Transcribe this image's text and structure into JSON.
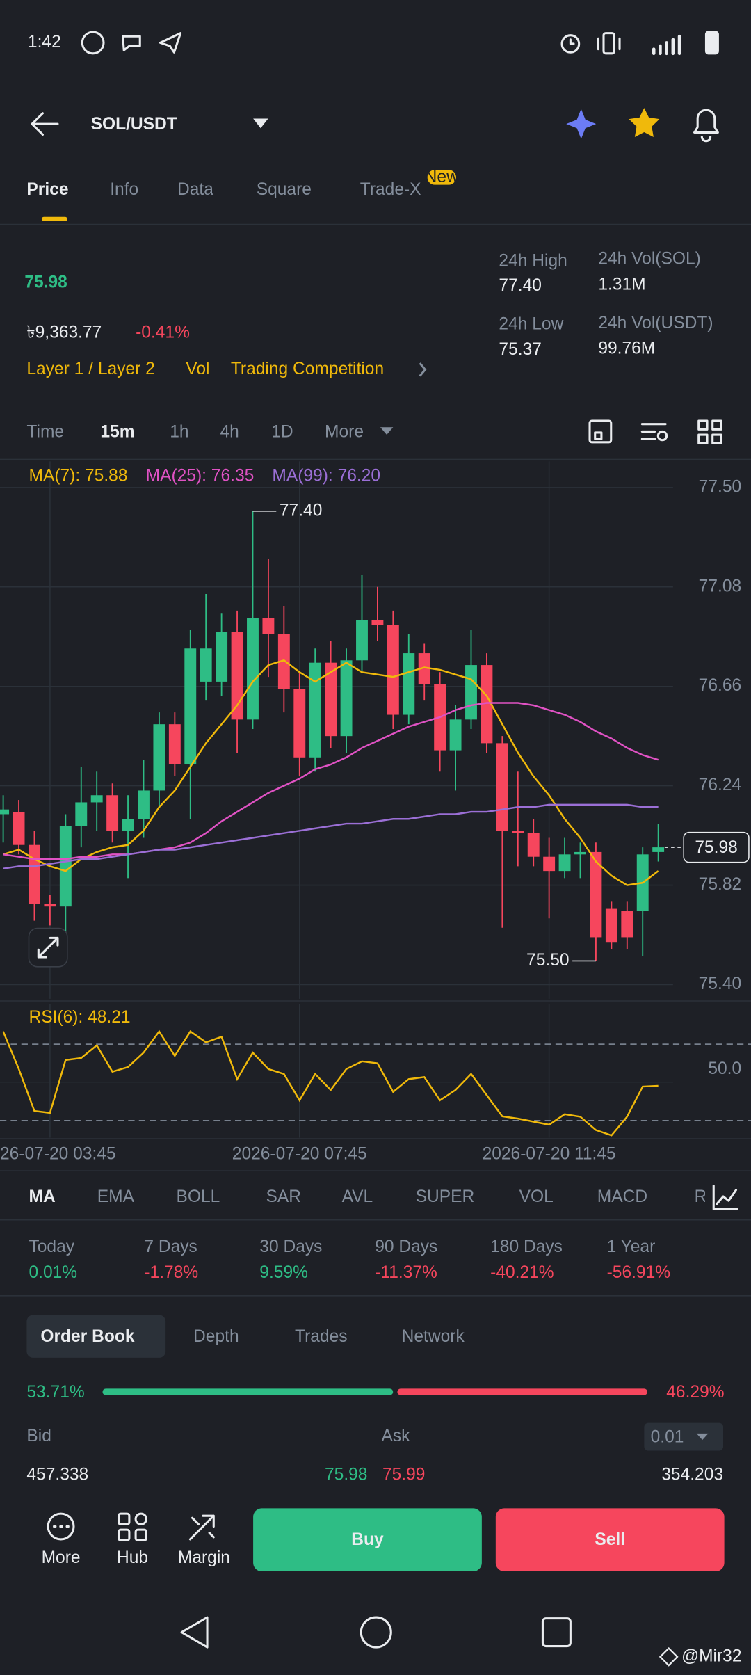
{
  "status_bar": {
    "time": "1:42"
  },
  "header": {
    "pair": "SOL/USDT"
  },
  "tabs": {
    "items": [
      "Price",
      "Info",
      "Data",
      "Square",
      "Trade-X"
    ],
    "badge": "New"
  },
  "ticker": {
    "price": "75.98",
    "fiat": "৳9,363.77",
    "change": "-0.41%",
    "tags": [
      "Layer 1 / Layer 2",
      "Vol",
      "Trading Competition"
    ],
    "stats": [
      {
        "label": "24h High",
        "value": "77.40"
      },
      {
        "label": "24h Vol(SOL)",
        "value": "1.31M"
      },
      {
        "label": "24h Low",
        "value": "75.37"
      },
      {
        "label": "24h Vol(USDT)",
        "value": "99.76M"
      }
    ]
  },
  "intervals": [
    "Time",
    "15m",
    "1h",
    "4h",
    "1D",
    "More"
  ],
  "chart_data": [
    {
      "type": "candlestick",
      "categories": [
        null,
        null,
        null,
        "26-07-20 03:45",
        null,
        null,
        null,
        null,
        null,
        null,
        null,
        null,
        null,
        null,
        null,
        null,
        null,
        null,
        null,
        "2026-07-20 07:45",
        null,
        null,
        null,
        null,
        null,
        null,
        null,
        null,
        null,
        null,
        null,
        null,
        null,
        null,
        null,
        "2026-07-20 11:45",
        null,
        null,
        null,
        null,
        null,
        null,
        null
      ],
      "open": [
        76.12,
        76.13,
        75.99,
        75.74,
        75.73,
        76.07,
        76.17,
        76.2,
        76.05,
        76.1,
        76.22,
        76.5,
        76.33,
        76.68,
        76.68,
        76.89,
        76.52,
        76.95,
        76.88,
        76.65,
        76.36,
        76.76,
        76.45,
        76.77,
        76.94,
        76.92,
        76.54,
        76.8,
        76.67,
        76.39,
        76.52,
        76.75,
        76.42,
        76.05,
        76.04,
        75.94,
        75.88,
        75.95,
        75.96,
        75.72,
        75.71,
        75.71,
        75.96
      ],
      "high": [
        76.2,
        76.18,
        76.05,
        75.78,
        76.12,
        76.32,
        76.3,
        76.25,
        76.2,
        76.35,
        76.55,
        76.55,
        76.9,
        77.05,
        76.97,
        76.98,
        77.4,
        77.2,
        77.0,
        76.72,
        76.82,
        76.85,
        76.82,
        77.13,
        77.08,
        76.98,
        76.88,
        76.84,
        76.72,
        76.58,
        76.9,
        76.8,
        76.45,
        76.3,
        76.1,
        76.02,
        76.02,
        76.0,
        76.0,
        75.75,
        75.75,
        75.98,
        76.08
      ],
      "low": [
        76.0,
        75.95,
        75.67,
        75.65,
        75.62,
        75.98,
        76.05,
        76.0,
        75.85,
        76.02,
        76.15,
        76.28,
        76.1,
        76.6,
        76.62,
        76.38,
        76.48,
        76.7,
        76.55,
        76.28,
        76.3,
        76.4,
        76.38,
        76.72,
        76.85,
        76.48,
        76.5,
        76.6,
        76.3,
        76.22,
        76.48,
        76.38,
        75.64,
        75.9,
        75.9,
        75.68,
        75.85,
        75.85,
        75.5,
        75.55,
        75.55,
        75.52,
        75.92
      ],
      "close": [
        76.14,
        75.99,
        75.74,
        75.73,
        76.07,
        76.17,
        76.2,
        76.05,
        76.1,
        76.22,
        76.5,
        76.33,
        76.82,
        76.82,
        76.89,
        76.52,
        76.95,
        76.88,
        76.65,
        76.36,
        76.76,
        76.45,
        76.77,
        76.94,
        76.92,
        76.54,
        76.8,
        76.67,
        76.39,
        76.52,
        76.75,
        76.42,
        76.05,
        76.04,
        75.94,
        75.88,
        75.95,
        75.96,
        75.6,
        75.58,
        75.6,
        75.95,
        75.98
      ],
      "up_color": "#2ebd85",
      "down_color": "#f6465d",
      "series": [
        {
          "name": "MA(7): 75.88",
          "color": "#f0b90b",
          "values": [
            75.95,
            75.97,
            75.93,
            75.9,
            75.88,
            75.93,
            75.96,
            75.98,
            75.99,
            76.05,
            76.15,
            76.22,
            76.32,
            76.42,
            76.5,
            76.58,
            76.68,
            76.75,
            76.77,
            76.72,
            76.68,
            76.72,
            76.76,
            76.72,
            76.71,
            76.7,
            76.72,
            76.74,
            76.73,
            76.71,
            76.69,
            76.62,
            76.5,
            76.38,
            76.28,
            76.2,
            76.1,
            76.02,
            75.92,
            75.86,
            75.82,
            75.83,
            75.88
          ]
        },
        {
          "name": "MA(25): 76.35",
          "color": "#e052c4",
          "values": [
            75.95,
            75.94,
            75.93,
            75.93,
            75.93,
            75.94,
            75.94,
            75.95,
            75.95,
            75.96,
            75.97,
            75.98,
            76.0,
            76.04,
            76.09,
            76.13,
            76.17,
            76.21,
            76.24,
            76.27,
            76.31,
            76.33,
            76.36,
            76.4,
            76.43,
            76.46,
            76.49,
            76.51,
            76.53,
            76.56,
            76.58,
            76.59,
            76.59,
            76.59,
            76.58,
            76.56,
            76.54,
            76.51,
            76.47,
            76.44,
            76.4,
            76.37,
            76.35
          ]
        },
        {
          "name": "MA(99): 76.20",
          "color": "#9b6fd6",
          "values": [
            75.89,
            75.9,
            75.9,
            75.91,
            75.92,
            75.93,
            75.93,
            75.94,
            75.95,
            75.96,
            75.97,
            75.97,
            75.98,
            75.99,
            76.0,
            76.01,
            76.02,
            76.03,
            76.04,
            76.05,
            76.06,
            76.07,
            76.08,
            76.08,
            76.09,
            76.1,
            76.1,
            76.11,
            76.12,
            76.12,
            76.13,
            76.13,
            76.14,
            76.15,
            76.15,
            76.16,
            76.16,
            76.16,
            76.16,
            76.16,
            76.16,
            76.15,
            76.15
          ]
        }
      ],
      "ylim": [
        75.34,
        77.61
      ],
      "yticks": [
        {
          "value": 77.5,
          "label": "77.50"
        },
        77.08,
        76.66,
        76.24,
        75.82,
        {
          "value": 75.4,
          "label": "75.40"
        }
      ],
      "annotations": [
        {
          "value": 77.4,
          "label": "77.40"
        },
        {
          "value": 75.5,
          "label": "75.50"
        }
      ],
      "current_price": {
        "value": 75.98,
        "label": "75.98"
      },
      "grid": true
    },
    {
      "type": "line",
      "series": [
        {
          "name": "RSI(6): 48.21",
          "color": "#f0b90b",
          "values": [
            76.7,
            57,
            35,
            34,
            61.7,
            62.8,
            69.4,
            55.6,
            58,
            65.6,
            76.7,
            63.9,
            76.7,
            71,
            73.9,
            51.7,
            65.6,
            57,
            54.4,
            40.6,
            54.4,
            46,
            57,
            61,
            60,
            45,
            51.7,
            52.8,
            40.6,
            46,
            54.4,
            43.3,
            32.2,
            31,
            29.4,
            27.8,
            33.3,
            32,
            25,
            22.2,
            32,
            47.8,
            48.21
          ]
        }
      ],
      "ylim": [
        21,
        91
      ],
      "yticks": [
        {
          "value": 50,
          "label": "50.0"
        }
      ],
      "reference_lines": [
        70,
        30
      ]
    }
  ],
  "indicators": [
    "MA",
    "EMA",
    "BOLL",
    "SAR",
    "AVL",
    "SUPER",
    "VOL",
    "MACD",
    "R"
  ],
  "performance": [
    {
      "label": "Today",
      "value": "0.01%"
    },
    {
      "label": "7 Days",
      "value": "-1.78%"
    },
    {
      "label": "30 Days",
      "value": "9.59%"
    },
    {
      "label": "90 Days",
      "value": "-11.37%"
    },
    {
      "label": "180 Days",
      "value": "-40.21%"
    },
    {
      "label": "1 Year",
      "value": "-56.91%"
    }
  ],
  "order_book": {
    "tabs": [
      "Order Book",
      "Depth",
      "Trades",
      "Network"
    ],
    "bid_ratio": {
      "value": 53.71,
      "label": "53.71%"
    },
    "ask_ratio": {
      "value": 46.29,
      "label": "46.29%"
    },
    "bid_label": "Bid",
    "ask_label": "Ask",
    "precision": "0.01",
    "bid_qty": "457.338",
    "bid_price": "75.98",
    "ask_price": "75.99",
    "ask_qty": "354.203"
  },
  "actions": {
    "items": [
      "More",
      "Hub",
      "Margin"
    ],
    "buy": "Buy",
    "sell": "Sell"
  },
  "watermark": "@Mir32"
}
